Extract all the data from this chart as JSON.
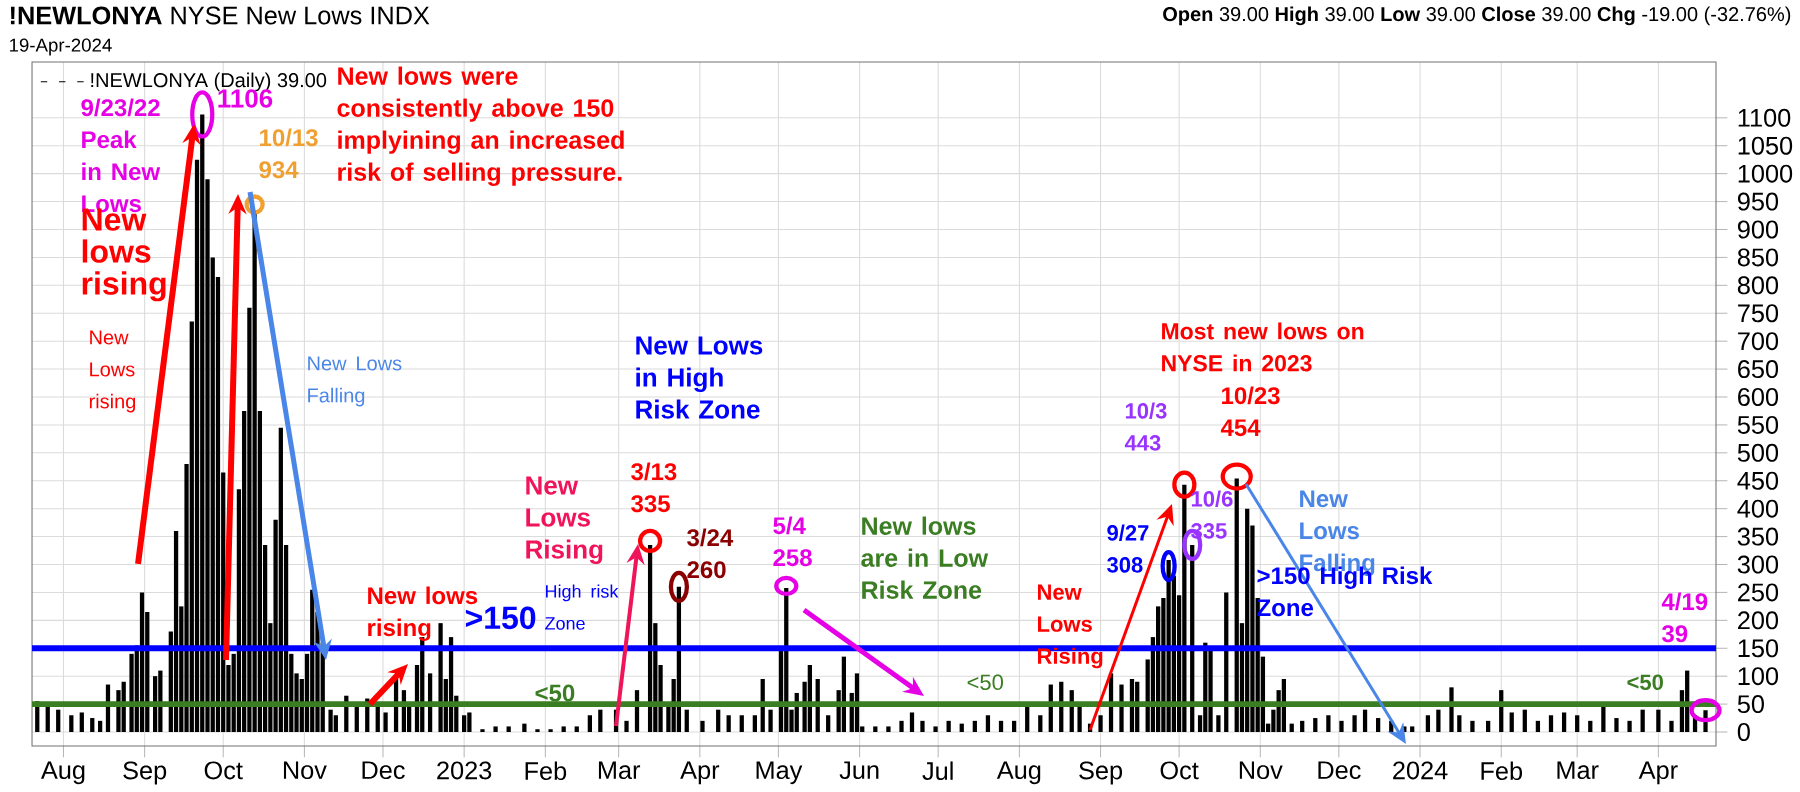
{
  "chart_data": {
    "type": "bar",
    "title": "**!NEWLONYA** NYSE New Lows INDX",
    "subtitle": "19-Apr-2024",
    "x": [
      "2022-07-22",
      "2022-07-26",
      "2022-07-30",
      "2022-08-04",
      "2022-08-08",
      "2022-08-12",
      "2022-08-15",
      "2022-08-18",
      "2022-08-22",
      "2022-08-24",
      "2022-08-27",
      "2022-08-29",
      "2022-08-31",
      "2022-09-02",
      "2022-09-05",
      "2022-09-07",
      "2022-09-11",
      "2022-09-13",
      "2022-09-15",
      "2022-09-17",
      "2022-09-19",
      "2022-09-21",
      "2022-09-23",
      "2022-09-25",
      "2022-09-27",
      "2022-09-29",
      "2022-10-01",
      "2022-10-03",
      "2022-10-05",
      "2022-10-07",
      "2022-10-09",
      "2022-10-11",
      "2022-10-13",
      "2022-10-15",
      "2022-10-17",
      "2022-10-19",
      "2022-10-21",
      "2022-10-23",
      "2022-10-25",
      "2022-10-27",
      "2022-10-29",
      "2022-10-31",
      "2022-11-02",
      "2022-11-04",
      "2022-11-06",
      "2022-11-08",
      "2022-11-11",
      "2022-11-13",
      "2022-11-17",
      "2022-11-21",
      "2022-11-25",
      "2022-11-29",
      "2022-12-02",
      "2022-12-06",
      "2022-12-09",
      "2022-12-11",
      "2022-12-14",
      "2022-12-16",
      "2022-12-19",
      "2022-12-23",
      "2022-12-25",
      "2022-12-27",
      "2022-12-29",
      "2023-01-01",
      "2023-01-03",
      "2023-01-08",
      "2023-01-13",
      "2023-01-18",
      "2023-01-24",
      "2023-01-29",
      "2023-02-03",
      "2023-02-08",
      "2023-02-13",
      "2023-02-18",
      "2023-02-22",
      "2023-02-28",
      "2023-03-04",
      "2023-03-08",
      "2023-03-13",
      "2023-03-15",
      "2023-03-17",
      "2023-03-20",
      "2023-03-22",
      "2023-03-24",
      "2023-03-27",
      "2023-04-02",
      "2023-04-08",
      "2023-04-12",
      "2023-04-17",
      "2023-04-22",
      "2023-04-25",
      "2023-04-28",
      "2023-05-02",
      "2023-05-04",
      "2023-05-06",
      "2023-05-08",
      "2023-05-11",
      "2023-05-13",
      "2023-05-16",
      "2023-05-20",
      "2023-05-24",
      "2023-05-26",
      "2023-05-29",
      "2023-05-31",
      "2023-06-02",
      "2023-06-07",
      "2023-06-12",
      "2023-06-17",
      "2023-06-21",
      "2023-06-25",
      "2023-06-30",
      "2023-07-05",
      "2023-07-10",
      "2023-07-15",
      "2023-07-20",
      "2023-07-25",
      "2023-07-30",
      "2023-08-04",
      "2023-08-09",
      "2023-08-13",
      "2023-08-17",
      "2023-08-21",
      "2023-08-24",
      "2023-08-28",
      "2023-09-01",
      "2023-09-05",
      "2023-09-09",
      "2023-09-13",
      "2023-09-15",
      "2023-09-19",
      "2023-09-21",
      "2023-09-23",
      "2023-09-25",
      "2023-09-27",
      "2023-09-29",
      "2023-10-01",
      "2023-10-03",
      "2023-10-06",
      "2023-10-09",
      "2023-10-11",
      "2023-10-13",
      "2023-10-16",
      "2023-10-19",
      "2023-10-23",
      "2023-10-25",
      "2023-10-27",
      "2023-10-29",
      "2023-10-31",
      "2023-11-02",
      "2023-11-04",
      "2023-11-06",
      "2023-11-08",
      "2023-11-10",
      "2023-11-13",
      "2023-11-17",
      "2023-11-22",
      "2023-11-27",
      "2023-12-02",
      "2023-12-07",
      "2023-12-11",
      "2023-12-16",
      "2023-12-21",
      "2023-12-26",
      "2023-12-29",
      "2024-01-04",
      "2024-01-08",
      "2024-01-13",
      "2024-01-16",
      "2024-01-21",
      "2024-01-27",
      "2024-02-01",
      "2024-02-05",
      "2024-02-10",
      "2024-02-15",
      "2024-02-20",
      "2024-02-25",
      "2024-03-01",
      "2024-03-06",
      "2024-03-11",
      "2024-03-16",
      "2024-03-21",
      "2024-03-26",
      "2024-04-01",
      "2024-04-06",
      "2024-04-10",
      "2024-04-12",
      "2024-04-15",
      "2024-04-19"
    ],
    "series": [
      {
        "name": "!NEWLONYA (Daily) 39.00",
        "color": "#000000",
        "values": [
          55,
          45,
          40,
          30,
          35,
          25,
          20,
          85,
          75,
          90,
          140,
          155,
          250,
          215,
          100,
          110,
          180,
          360,
          225,
          480,
          735,
          1025,
          1106,
          990,
          850,
          815,
          465,
          120,
          140,
          435,
          575,
          760,
          934,
          575,
          335,
          195,
          380,
          545,
          335,
          140,
          105,
          95,
          140,
          255,
          215,
          160,
          40,
          30,
          65,
          45,
          60,
          45,
          35,
          95,
          75,
          45,
          120,
          170,
          105,
          195,
          95,
          170,
          65,
          30,
          35,
          5,
          10,
          10,
          15,
          5,
          5,
          10,
          10,
          30,
          40,
          40,
          20,
          75,
          335,
          195,
          120,
          50,
          95,
          260,
          40,
          20,
          40,
          30,
          30,
          30,
          95,
          40,
          145,
          258,
          40,
          70,
          90,
          120,
          95,
          30,
          75,
          135,
          70,
          105,
          10,
          10,
          10,
          20,
          35,
          20,
          10,
          20,
          15,
          20,
          30,
          20,
          20,
          45,
          30,
          85,
          90,
          75,
          50,
          15,
          30,
          105,
          85,
          95,
          90,
          130,
          170,
          225,
          240,
          308,
          280,
          245,
          443,
          335,
          30,
          160,
          150,
          30,
          250,
          454,
          195,
          400,
          370,
          240,
          135,
          15,
          40,
          75,
          95,
          15,
          20,
          25,
          30,
          20,
          30,
          40,
          25,
          20,
          10,
          10,
          30,
          40,
          80,
          30,
          20,
          20,
          75,
          35,
          40,
          20,
          30,
          35,
          30,
          20,
          45,
          25,
          20,
          40,
          40,
          20,
          75,
          110,
          30,
          39
        ]
      }
    ],
    "xlim": [
      "2022-07-20",
      "2024-04-23"
    ],
    "ylim": [
      -25,
      1200
    ],
    "xticks": [
      {
        "value": "2022-08-01",
        "label": "Aug"
      },
      {
        "value": "2022-09-01",
        "label": "Sep"
      },
      {
        "value": "2022-10-01",
        "label": "Oct"
      },
      {
        "value": "2022-11-01",
        "label": "Nov"
      },
      {
        "value": "2022-12-01",
        "label": "Dec"
      },
      {
        "value": "2023-01-01",
        "label": "2023"
      },
      {
        "value": "2023-02-01",
        "label": "Feb"
      },
      {
        "value": "2023-03-01",
        "label": "Mar"
      },
      {
        "value": "2023-04-01",
        "label": "Apr"
      },
      {
        "value": "2023-05-01",
        "label": "May"
      },
      {
        "value": "2023-06-01",
        "label": "Jun"
      },
      {
        "value": "2023-07-01",
        "label": "Jul"
      },
      {
        "value": "2023-08-01",
        "label": "Aug"
      },
      {
        "value": "2023-09-01",
        "label": "Sep"
      },
      {
        "value": "2023-10-01",
        "label": "Oct"
      },
      {
        "value": "2023-11-01",
        "label": "Nov"
      },
      {
        "value": "2023-12-01",
        "label": "Dec"
      },
      {
        "value": "2024-01-01",
        "label": "2024"
      },
      {
        "value": "2024-02-01",
        "label": "Feb"
      },
      {
        "value": "2024-03-01",
        "label": "Mar"
      },
      {
        "value": "2024-04-01",
        "label": "Apr"
      }
    ],
    "yticks": [
      0,
      50,
      100,
      150,
      200,
      250,
      300,
      350,
      400,
      450,
      500,
      550,
      600,
      650,
      700,
      750,
      800,
      850,
      900,
      950,
      1000,
      1050,
      1100
    ],
    "grid": true,
    "legend": "top left",
    "ref_lines": [
      {
        "axis": "y",
        "value": 150,
        "color": "#0000ff"
      },
      {
        "axis": "y",
        "value": 50,
        "color": "#3a7d22"
      }
    ],
    "annotations": [
      {
        "text": "9/23/22 Peak in New Lows",
        "x": "2022-09-23",
        "y": 1106
      },
      {
        "text": "1106",
        "x": "2022-09-23",
        "y": 1106
      },
      "New lows were consistently above 150 implyining an increased risk of selling pressure.",
      "New lows rising",
      {
        "text": "10/13 934",
        "x": "2022-10-13",
        "y": 934
      },
      "New Lows rising",
      "New Lows Falling",
      "New lows rising",
      ">150",
      "High risk Zone",
      "<50",
      "New Lows Rising",
      "New Lows in High Risk Zone",
      {
        "text": "3/13 335",
        "x": "2023-03-13",
        "y": 335
      },
      {
        "text": "3/24 260",
        "x": "2023-03-24",
        "y": 260
      },
      {
        "text": "5/4 258",
        "x": "2023-05-04",
        "y": 258
      },
      "New lows are in Low Risk Zone",
      "<50",
      "New Lows Rising",
      {
        "text": "9/27 308",
        "x": "2023-09-27",
        "y": 308
      },
      {
        "text": "10/3 443",
        "x": "2023-10-03",
        "y": 443
      },
      "Most new lows on NYSE in 2023",
      {
        "text": "10/23 454",
        "x": "2023-10-23",
        "y": 454
      },
      {
        "text": "10/6 335",
        "x": "2023-10-06",
        "y": 335
      },
      "New Lows Falling",
      ">150 High Risk Zone",
      {
        "text": "4/19 39",
        "x": "2024-04-19",
        "y": 39
      },
      "<50",
      "**Open** 39.00 **High** 39.00 **Low** 39.00 **Close** 39.00 **Chg** -19.00 (-32.76%)"
    ]
  }
}
